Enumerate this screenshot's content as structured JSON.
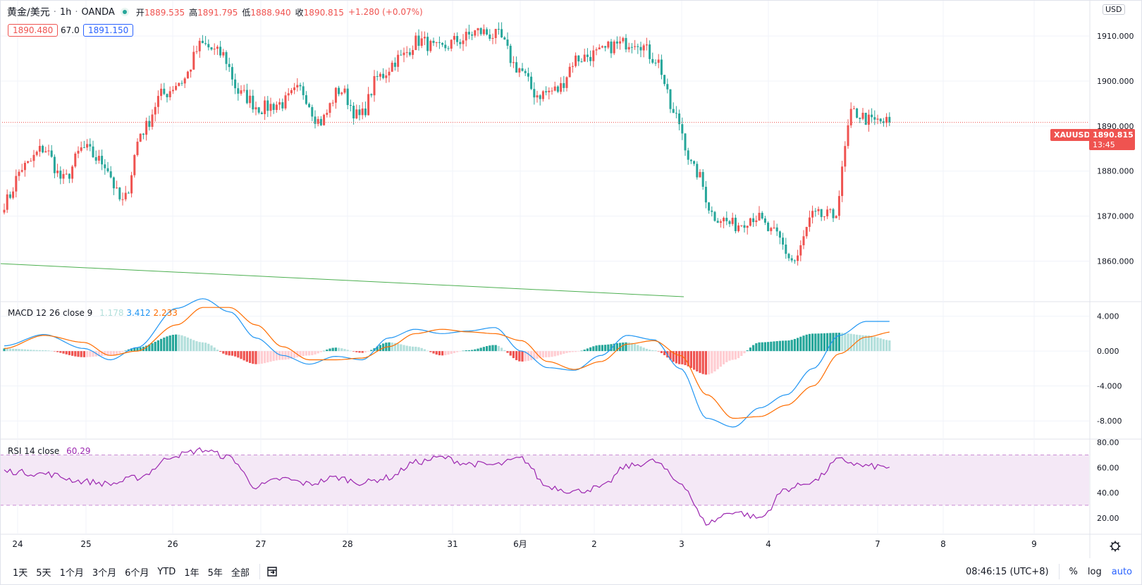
{
  "header": {
    "symbol": "黄金/美元",
    "interval": "1h",
    "source": "OANDA",
    "open_label": "开",
    "open": "1889.535",
    "high_label": "高",
    "high": "1891.795",
    "low_label": "低",
    "low": "1888.940",
    "close_label": "收",
    "close": "1890.815",
    "change": "+1.280 (+0.07%)"
  },
  "quote": {
    "sell": "1890.480",
    "spread": "67.0",
    "buy": "1891.150"
  },
  "currency_badge": "USD",
  "last_price": {
    "ticker": "XAUUSD",
    "price": "1890.815",
    "countdown": "13:45"
  },
  "macd": {
    "title": "MACD 12 26 close 9",
    "histogram": "1.178",
    "macd": "3.412",
    "signal": "2.233"
  },
  "rsi": {
    "title": "RSI 14 close",
    "value": "60.29"
  },
  "bottom_bar": {
    "ranges": [
      "1天",
      "5天",
      "1个月",
      "3个月",
      "6个月",
      "YTD",
      "1年",
      "5年",
      "全部"
    ],
    "time": "08:46:15 (UTC+8)",
    "percent": "%",
    "log": "log",
    "auto": "auto"
  },
  "colors": {
    "up": "#ef5350",
    "down": "#26a69a",
    "macd": "#2196f3",
    "signal": "#ff6d00",
    "rsi": "#9c27b0",
    "trend": "#4caf50"
  },
  "chart_data": [
    {
      "type": "candlestick",
      "title": "黄金/美元 · 1h · OANDA",
      "x_tick_labels": [
        "24",
        "25",
        "26",
        "27",
        "28",
        "31",
        "6月",
        "2",
        "3",
        "4",
        "7",
        "8",
        "9"
      ],
      "y_tick_labels": [
        "1860.000",
        "1870.000",
        "1880.000",
        "1890.000",
        "1900.000",
        "1910.000"
      ],
      "ylim": [
        1851,
        1918
      ],
      "price_line": 1890.815,
      "anchors": [
        [
          0,
          1873
        ],
        [
          1,
          1881
        ],
        [
          2,
          1885
        ],
        [
          3,
          1878
        ],
        [
          4,
          1885
        ],
        [
          5,
          1882
        ],
        [
          6,
          1873
        ],
        [
          7,
          1889
        ],
        [
          8,
          1897
        ],
        [
          9,
          1900
        ],
        [
          10,
          1908
        ],
        [
          11,
          1906
        ],
        [
          12,
          1897
        ],
        [
          13,
          1894
        ],
        [
          14,
          1895
        ],
        [
          15,
          1898
        ],
        [
          16,
          1891
        ],
        [
          17,
          1898
        ],
        [
          18,
          1892
        ],
        [
          19,
          1901
        ],
        [
          20,
          1905
        ],
        [
          21,
          1909
        ],
        [
          22,
          1907
        ],
        [
          23,
          1909
        ],
        [
          24,
          1911
        ],
        [
          25,
          1910
        ],
        [
          26,
          1903
        ],
        [
          27,
          1897
        ],
        [
          28,
          1898
        ],
        [
          29,
          1905
        ],
        [
          30,
          1906
        ],
        [
          31,
          1908
        ],
        [
          32,
          1909
        ],
        [
          33,
          1905
        ],
        [
          34,
          1892
        ],
        [
          35,
          1880
        ],
        [
          36,
          1870
        ],
        [
          37,
          1868
        ],
        [
          38,
          1870
        ],
        [
          39,
          1866
        ],
        [
          40,
          1860
        ],
        [
          41,
          1870
        ],
        [
          42,
          1870
        ],
        [
          43,
          1893
        ],
        [
          44,
          1891
        ],
        [
          45,
          1890.8
        ]
      ]
    },
    {
      "type": "line",
      "title": "MACD 12 26 close 9",
      "y_tick_labels": [
        "-8.000",
        "-4.000",
        "0.000",
        "4.000"
      ],
      "ylim": [
        -10,
        5.5
      ],
      "series": [
        {
          "name": "MACD",
          "points": [
            [
              0,
              0.6
            ],
            [
              3,
              1.9
            ],
            [
              6,
              0.3
            ],
            [
              8,
              -1.0
            ],
            [
              10,
              0.4
            ],
            [
              13,
              4.9
            ],
            [
              15,
              6.0
            ],
            [
              17,
              4.5
            ],
            [
              19,
              1.5
            ],
            [
              21,
              -0.5
            ],
            [
              23,
              -1.5
            ],
            [
              25,
              -0.6
            ],
            [
              27,
              -1.0
            ],
            [
              29,
              1.5
            ],
            [
              31,
              2.5
            ],
            [
              33,
              2.0
            ],
            [
              35,
              2.3
            ],
            [
              37,
              2.7
            ],
            [
              39,
              0.0
            ],
            [
              41,
              -1.9
            ],
            [
              43,
              -2.2
            ],
            [
              45,
              -0.5
            ],
            [
              47,
              1.8
            ],
            [
              49,
              1.3
            ],
            [
              51,
              -2.0
            ],
            [
              53,
              -7.7
            ],
            [
              55,
              -8.7
            ],
            [
              57,
              -6.5
            ],
            [
              59,
              -5.0
            ],
            [
              61,
              -2.0
            ],
            [
              63,
              1.8
            ],
            [
              65,
              3.4
            ],
            [
              67,
              3.4
            ]
          ]
        },
        {
          "name": "Signal",
          "points": [
            [
              0,
              0.3
            ],
            [
              3,
              1.8
            ],
            [
              6,
              1.0
            ],
            [
              8,
              -0.5
            ],
            [
              10,
              0.0
            ],
            [
              13,
              3.0
            ],
            [
              15,
              5.0
            ],
            [
              17,
              5.0
            ],
            [
              19,
              3.0
            ],
            [
              21,
              0.5
            ],
            [
              23,
              -1.0
            ],
            [
              25,
              -1.0
            ],
            [
              27,
              -0.8
            ],
            [
              29,
              0.5
            ],
            [
              31,
              2.0
            ],
            [
              33,
              2.5
            ],
            [
              35,
              2.2
            ],
            [
              37,
              2.0
            ],
            [
              39,
              1.2
            ],
            [
              41,
              -1.2
            ],
            [
              43,
              -2.1
            ],
            [
              45,
              -1.2
            ],
            [
              47,
              0.8
            ],
            [
              49,
              1.2
            ],
            [
              51,
              -0.5
            ],
            [
              53,
              -5.0
            ],
            [
              55,
              -7.7
            ],
            [
              57,
              -7.5
            ],
            [
              59,
              -6.2
            ],
            [
              61,
              -4.0
            ],
            [
              63,
              -0.3
            ],
            [
              65,
              1.6
            ],
            [
              67,
              2.2
            ]
          ]
        }
      ]
    },
    {
      "type": "line",
      "title": "RSI 14 close",
      "y_tick_labels": [
        "20.00",
        "40.00",
        "60.00",
        "80.00"
      ],
      "ylim": [
        7,
        82
      ],
      "bands": [
        30,
        70
      ],
      "series": [
        {
          "name": "RSI",
          "points": [
            [
              0,
              57
            ],
            [
              3,
              55
            ],
            [
              6,
              49
            ],
            [
              8,
              47
            ],
            [
              10,
              52
            ],
            [
              13,
              70
            ],
            [
              15,
              74
            ],
            [
              17,
              68
            ],
            [
              19,
              45
            ],
            [
              21,
              51
            ],
            [
              23,
              47
            ],
            [
              25,
              52
            ],
            [
              27,
              48
            ],
            [
              29,
              52
            ],
            [
              31,
              64
            ],
            [
              33,
              68
            ],
            [
              35,
              63
            ],
            [
              37,
              62
            ],
            [
              39,
              67
            ],
            [
              41,
              45
            ],
            [
              43,
              41
            ],
            [
              45,
              44
            ],
            [
              47,
              61
            ],
            [
              49,
              65
            ],
            [
              51,
              48
            ],
            [
              53,
              16
            ],
            [
              55,
              25
            ],
            [
              57,
              20
            ],
            [
              59,
              43
            ],
            [
              61,
              49
            ],
            [
              63,
              66
            ],
            [
              65,
              61
            ],
            [
              67,
              60.3
            ]
          ]
        }
      ]
    }
  ]
}
